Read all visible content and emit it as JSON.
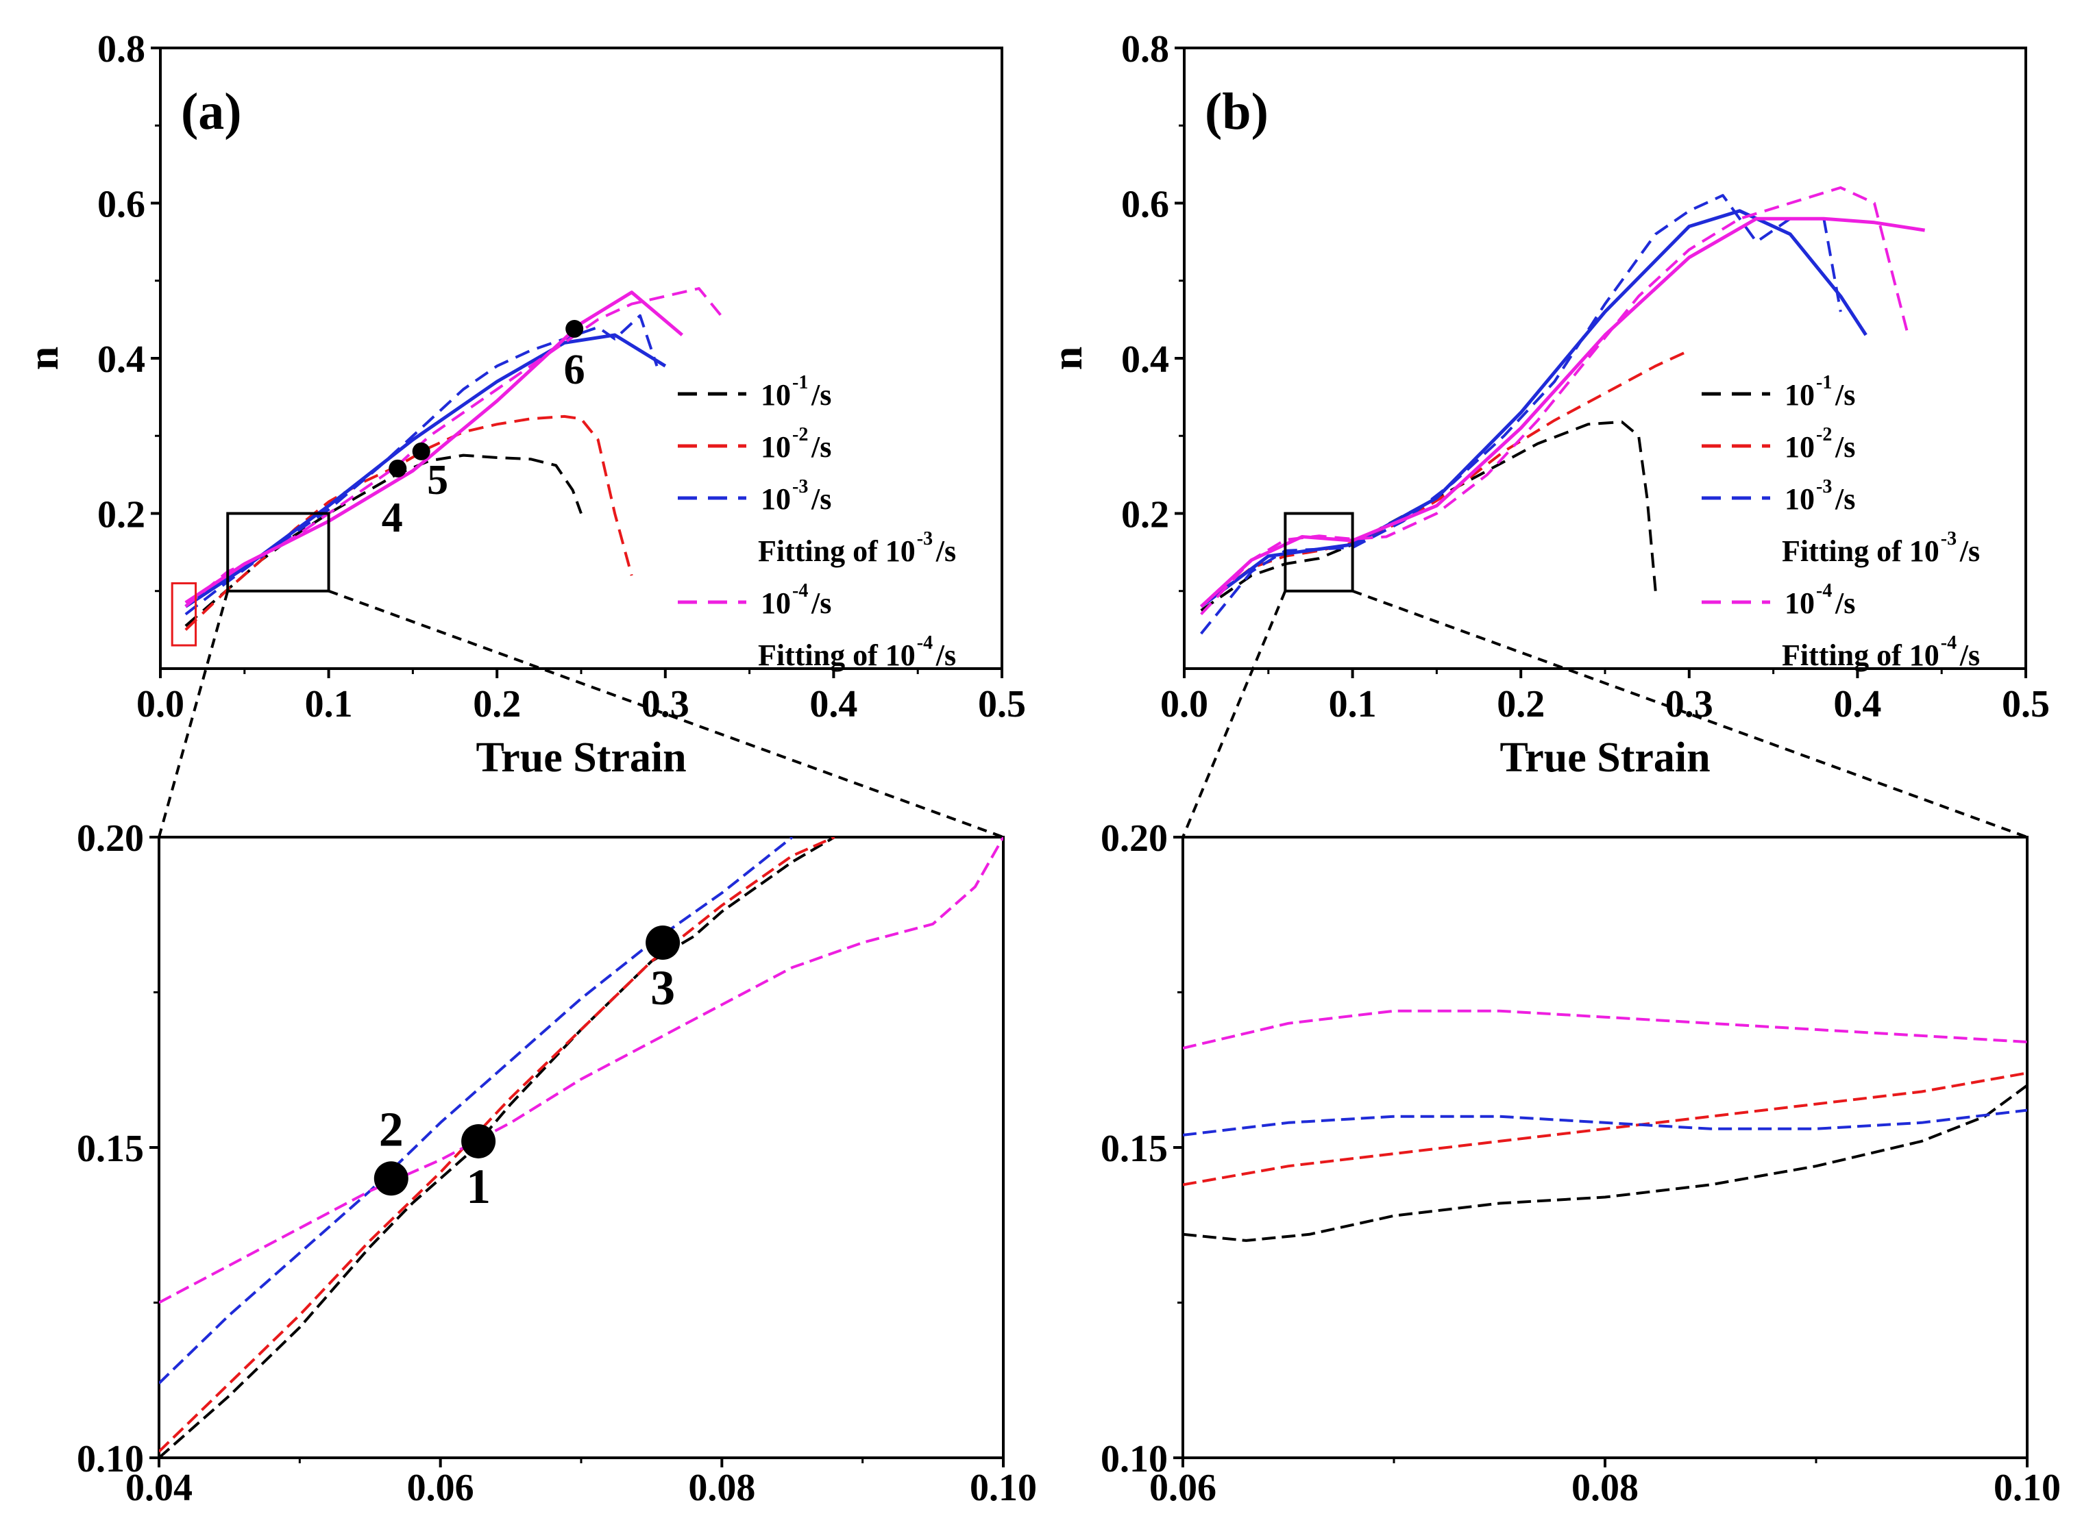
{
  "chart_data": [
    {
      "panel_label": "(a)",
      "type": "line",
      "xlabel": "True Strain",
      "ylabel": "n",
      "xlim": [
        0.0,
        0.5
      ],
      "ylim": [
        0.0,
        0.8
      ],
      "xticks": [
        0.0,
        0.1,
        0.2,
        0.3,
        0.4,
        0.5
      ],
      "xtick_labels": [
        "0.0",
        "0.1",
        "0.2",
        "0.3",
        "0.4",
        "0.5"
      ],
      "yticks": [
        0.2,
        0.4,
        0.6,
        0.8
      ],
      "ytick_labels": [
        "0.2",
        "0.4",
        "0.6",
        "0.8"
      ],
      "legend_position": "center-right",
      "zoom_box": {
        "x": [
          0.04,
          0.1
        ],
        "y": [
          0.1,
          0.2
        ]
      },
      "series": [
        {
          "name": "10⁻¹/s",
          "legend_base": "10",
          "legend_sup": "-1",
          "legend_suffix": "/s",
          "color": "#000000",
          "style": "dashed",
          "x": [
            0.015,
            0.04,
            0.06,
            0.08,
            0.1,
            0.12,
            0.14,
            0.16,
            0.18,
            0.2,
            0.22,
            0.235,
            0.245,
            0.25
          ],
          "y": [
            0.055,
            0.102,
            0.14,
            0.172,
            0.2,
            0.225,
            0.25,
            0.268,
            0.275,
            0.272,
            0.27,
            0.262,
            0.23,
            0.2
          ]
        },
        {
          "name": "10⁻²/s",
          "legend_base": "10",
          "legend_sup": "-2",
          "legend_suffix": "/s",
          "color": "#e8191b",
          "style": "dashed",
          "x": [
            0.015,
            0.04,
            0.06,
            0.08,
            0.1,
            0.12,
            0.14,
            0.16,
            0.18,
            0.2,
            0.22,
            0.24,
            0.25,
            0.26,
            0.27,
            0.28
          ],
          "y": [
            0.05,
            0.102,
            0.14,
            0.18,
            0.215,
            0.24,
            0.26,
            0.285,
            0.305,
            0.315,
            0.322,
            0.325,
            0.322,
            0.295,
            0.2,
            0.12
          ]
        },
        {
          "name": "10⁻³/s",
          "legend_base": "10",
          "legend_sup": "-3",
          "legend_suffix": "/s",
          "color": "#1f2bd8",
          "style": "dashed",
          "x": [
            0.015,
            0.04,
            0.07,
            0.1,
            0.13,
            0.16,
            0.18,
            0.2,
            0.22,
            0.24,
            0.26,
            0.27,
            0.285,
            0.295
          ],
          "y": [
            0.07,
            0.112,
            0.16,
            0.205,
            0.26,
            0.32,
            0.36,
            0.39,
            0.41,
            0.425,
            0.44,
            0.425,
            0.455,
            0.39
          ]
        },
        {
          "name": "Fitting of 10⁻³/s",
          "legend_base": "Fitting of 10",
          "legend_sup": "-3",
          "legend_suffix": "/s",
          "color": "#1f2bd8",
          "style": "solid",
          "x": [
            0.015,
            0.05,
            0.1,
            0.15,
            0.2,
            0.24,
            0.27,
            0.3
          ],
          "y": [
            0.08,
            0.13,
            0.21,
            0.295,
            0.37,
            0.42,
            0.43,
            0.39
          ]
        },
        {
          "name": "10⁻⁴/s",
          "legend_base": "10",
          "legend_sup": "-4",
          "legend_suffix": "/s",
          "color": "#ee1fe0",
          "style": "dashed",
          "x": [
            0.015,
            0.04,
            0.06,
            0.08,
            0.1,
            0.12,
            0.14,
            0.16,
            0.18,
            0.2,
            0.22,
            0.24,
            0.26,
            0.28,
            0.3,
            0.32,
            0.335
          ],
          "y": [
            0.08,
            0.125,
            0.145,
            0.17,
            0.2,
            0.23,
            0.26,
            0.3,
            0.33,
            0.36,
            0.39,
            0.42,
            0.45,
            0.47,
            0.48,
            0.49,
            0.45
          ]
        },
        {
          "name": "Fitting of 10⁻⁴/s",
          "legend_base": "Fitting of 10",
          "legend_sup": "-4",
          "legend_suffix": "/s",
          "color": "#ee1fe0",
          "style": "solid",
          "x": [
            0.015,
            0.05,
            0.1,
            0.15,
            0.2,
            0.25,
            0.28,
            0.31
          ],
          "y": [
            0.085,
            0.135,
            0.19,
            0.255,
            0.345,
            0.445,
            0.485,
            0.43
          ]
        }
      ],
      "markers": [
        {
          "label": "4",
          "x": 0.141,
          "y": 0.258
        },
        {
          "label": "5",
          "x": 0.155,
          "y": 0.28
        },
        {
          "label": "6",
          "x": 0.246,
          "y": 0.438
        }
      ]
    },
    {
      "panel_label": "(b)",
      "type": "line",
      "xlabel": "True Strain",
      "ylabel": "n",
      "xlim": [
        0.0,
        0.5
      ],
      "ylim": [
        0.0,
        0.8
      ],
      "xticks": [
        0.0,
        0.1,
        0.2,
        0.3,
        0.4,
        0.5
      ],
      "xtick_labels": [
        "0.0",
        "0.1",
        "0.2",
        "0.3",
        "0.4",
        "0.5"
      ],
      "yticks": [
        0.2,
        0.4,
        0.6,
        0.8
      ],
      "ytick_labels": [
        "0.2",
        "0.4",
        "0.6",
        "0.8"
      ],
      "legend_position": "center-right",
      "zoom_box": {
        "x": [
          0.06,
          0.1
        ],
        "y": [
          0.1,
          0.2
        ]
      },
      "series": [
        {
          "name": "10⁻¹/s",
          "legend_base": "10",
          "legend_sup": "-1",
          "legend_suffix": "/s",
          "color": "#000000",
          "style": "dashed",
          "x": [
            0.01,
            0.04,
            0.06,
            0.08,
            0.1,
            0.12,
            0.15,
            0.18,
            0.21,
            0.24,
            0.26,
            0.27,
            0.275,
            0.28
          ],
          "y": [
            0.075,
            0.12,
            0.135,
            0.142,
            0.16,
            0.185,
            0.22,
            0.255,
            0.29,
            0.315,
            0.318,
            0.3,
            0.22,
            0.1
          ]
        },
        {
          "name": "10⁻²/s",
          "legend_base": "10",
          "legend_sup": "-2",
          "legend_suffix": "/s",
          "color": "#e8191b",
          "style": "dashed",
          "x": [
            0.01,
            0.04,
            0.06,
            0.08,
            0.1,
            0.13,
            0.16,
            0.19,
            0.22,
            0.25,
            0.28,
            0.3
          ],
          "y": [
            0.08,
            0.13,
            0.145,
            0.152,
            0.162,
            0.19,
            0.23,
            0.28,
            0.32,
            0.355,
            0.39,
            0.41
          ]
        },
        {
          "name": "10⁻³/s",
          "legend_base": "10",
          "legend_sup": "-3",
          "legend_suffix": "/s",
          "color": "#1f2bd8",
          "style": "dashed",
          "x": [
            0.01,
            0.04,
            0.06,
            0.08,
            0.1,
            0.13,
            0.16,
            0.19,
            0.22,
            0.25,
            0.28,
            0.3,
            0.32,
            0.34,
            0.36,
            0.38,
            0.39
          ],
          "y": [
            0.045,
            0.125,
            0.152,
            0.154,
            0.156,
            0.19,
            0.24,
            0.3,
            0.37,
            0.47,
            0.56,
            0.59,
            0.61,
            0.55,
            0.58,
            0.58,
            0.46
          ]
        },
        {
          "name": "Fitting of 10⁻³/s",
          "legend_base": "Fitting of 10",
          "legend_sup": "-3",
          "legend_suffix": "/s",
          "color": "#1f2bd8",
          "style": "solid",
          "x": [
            0.01,
            0.05,
            0.1,
            0.15,
            0.2,
            0.25,
            0.3,
            0.33,
            0.36,
            0.39,
            0.405
          ],
          "y": [
            0.08,
            0.145,
            0.16,
            0.22,
            0.33,
            0.46,
            0.57,
            0.59,
            0.56,
            0.48,
            0.43
          ]
        },
        {
          "name": "10⁻⁴/s",
          "legend_base": "10",
          "legend_sup": "-4",
          "legend_suffix": "/s",
          "color": "#ee1fe0",
          "style": "dashed",
          "x": [
            0.01,
            0.04,
            0.06,
            0.08,
            0.1,
            0.12,
            0.15,
            0.18,
            0.21,
            0.24,
            0.27,
            0.3,
            0.33,
            0.36,
            0.39,
            0.41,
            0.43
          ],
          "y": [
            0.07,
            0.14,
            0.166,
            0.171,
            0.167,
            0.17,
            0.2,
            0.25,
            0.32,
            0.4,
            0.48,
            0.54,
            0.58,
            0.6,
            0.62,
            0.6,
            0.43
          ]
        },
        {
          "name": "Fitting of 10⁻⁴/s",
          "legend_base": "Fitting of 10",
          "legend_sup": "-4",
          "legend_suffix": "/s",
          "color": "#ee1fe0",
          "style": "solid",
          "x": [
            0.01,
            0.04,
            0.07,
            0.1,
            0.15,
            0.2,
            0.25,
            0.3,
            0.34,
            0.38,
            0.41,
            0.44
          ],
          "y": [
            0.08,
            0.14,
            0.17,
            0.165,
            0.21,
            0.31,
            0.43,
            0.53,
            0.58,
            0.58,
            0.575,
            0.565
          ]
        }
      ],
      "markers": []
    },
    {
      "panel_label": "",
      "type": "line",
      "xlabel": "",
      "ylabel": "",
      "xlim": [
        0.04,
        0.1
      ],
      "ylim": [
        0.1,
        0.2
      ],
      "xticks": [
        0.04,
        0.06,
        0.08,
        0.1
      ],
      "xtick_labels": [
        "0.04",
        "0.06",
        "0.08",
        "0.10"
      ],
      "yticks": [
        0.1,
        0.15,
        0.2
      ],
      "ytick_labels": [
        "0.10",
        "0.15",
        "0.20"
      ],
      "series": [
        {
          "name": "10⁻¹/s",
          "color": "#000000",
          "style": "dashed",
          "x": [
            0.04,
            0.045,
            0.05,
            0.055,
            0.058,
            0.06,
            0.062,
            0.065,
            0.07,
            0.075,
            0.078,
            0.08,
            0.085,
            0.088
          ],
          "y": [
            0.1,
            0.11,
            0.121,
            0.134,
            0.141,
            0.145,
            0.149,
            0.157,
            0.169,
            0.18,
            0.184,
            0.188,
            0.196,
            0.2
          ]
        },
        {
          "name": "10⁻²/s",
          "color": "#e8191b",
          "style": "dashed",
          "x": [
            0.04,
            0.045,
            0.05,
            0.055,
            0.06,
            0.065,
            0.07,
            0.075,
            0.08,
            0.085,
            0.088
          ],
          "y": [
            0.101,
            0.112,
            0.123,
            0.135,
            0.146,
            0.158,
            0.169,
            0.18,
            0.189,
            0.197,
            0.2
          ]
        },
        {
          "name": "10⁻³/s",
          "color": "#1f2bd8",
          "style": "dashed",
          "x": [
            0.04,
            0.045,
            0.05,
            0.055,
            0.06,
            0.065,
            0.07,
            0.075,
            0.08,
            0.085
          ],
          "y": [
            0.112,
            0.123,
            0.133,
            0.143,
            0.154,
            0.164,
            0.174,
            0.183,
            0.191,
            0.2
          ]
        },
        {
          "name": "10⁻⁴/s",
          "color": "#ee1fe0",
          "style": "dashed",
          "x": [
            0.04,
            0.045,
            0.05,
            0.055,
            0.06,
            0.065,
            0.07,
            0.075,
            0.08,
            0.085,
            0.09,
            0.095,
            0.098,
            0.1
          ],
          "y": [
            0.125,
            0.131,
            0.137,
            0.143,
            0.148,
            0.154,
            0.161,
            0.167,
            0.173,
            0.179,
            0.183,
            0.186,
            0.192,
            0.2
          ]
        }
      ],
      "markers": [
        {
          "label": "2",
          "x": 0.0565,
          "y": 0.145,
          "label_pos": "above"
        },
        {
          "label": "1",
          "x": 0.0627,
          "y": 0.151,
          "label_pos": "below"
        },
        {
          "label": "3",
          "x": 0.0758,
          "y": 0.183,
          "label_pos": "below"
        }
      ]
    },
    {
      "panel_label": "",
      "type": "line",
      "xlabel": "",
      "ylabel": "",
      "xlim": [
        0.06,
        0.1
      ],
      "ylim": [
        0.1,
        0.2
      ],
      "xticks": [
        0.06,
        0.08,
        0.1
      ],
      "xtick_labels": [
        "0.06",
        "0.08",
        "0.10"
      ],
      "yticks": [
        0.1,
        0.15,
        0.2
      ],
      "ytick_labels": [
        "0.10",
        "0.15",
        "0.20"
      ],
      "series": [
        {
          "name": "10⁻¹/s",
          "color": "#000000",
          "style": "dashed",
          "x": [
            0.06,
            0.063,
            0.066,
            0.07,
            0.075,
            0.08,
            0.085,
            0.09,
            0.095,
            0.098,
            0.1
          ],
          "y": [
            0.136,
            0.135,
            0.136,
            0.139,
            0.141,
            0.142,
            0.144,
            0.147,
            0.151,
            0.155,
            0.16
          ]
        },
        {
          "name": "10⁻²/s",
          "color": "#e8191b",
          "style": "dashed",
          "x": [
            0.06,
            0.065,
            0.07,
            0.075,
            0.08,
            0.085,
            0.09,
            0.095,
            0.1
          ],
          "y": [
            0.144,
            0.147,
            0.149,
            0.151,
            0.153,
            0.155,
            0.157,
            0.159,
            0.162
          ]
        },
        {
          "name": "10⁻³/s",
          "color": "#1f2bd8",
          "style": "dashed",
          "x": [
            0.06,
            0.065,
            0.07,
            0.075,
            0.08,
            0.085,
            0.09,
            0.095,
            0.1
          ],
          "y": [
            0.152,
            0.154,
            0.155,
            0.155,
            0.154,
            0.153,
            0.153,
            0.154,
            0.156
          ]
        },
        {
          "name": "10⁻⁴/s",
          "color": "#ee1fe0",
          "style": "dashed",
          "x": [
            0.06,
            0.065,
            0.07,
            0.075,
            0.08,
            0.085,
            0.09,
            0.095,
            0.1
          ],
          "y": [
            0.166,
            0.17,
            0.172,
            0.172,
            0.171,
            0.17,
            0.169,
            0.168,
            0.167
          ]
        }
      ],
      "markers": []
    }
  ]
}
